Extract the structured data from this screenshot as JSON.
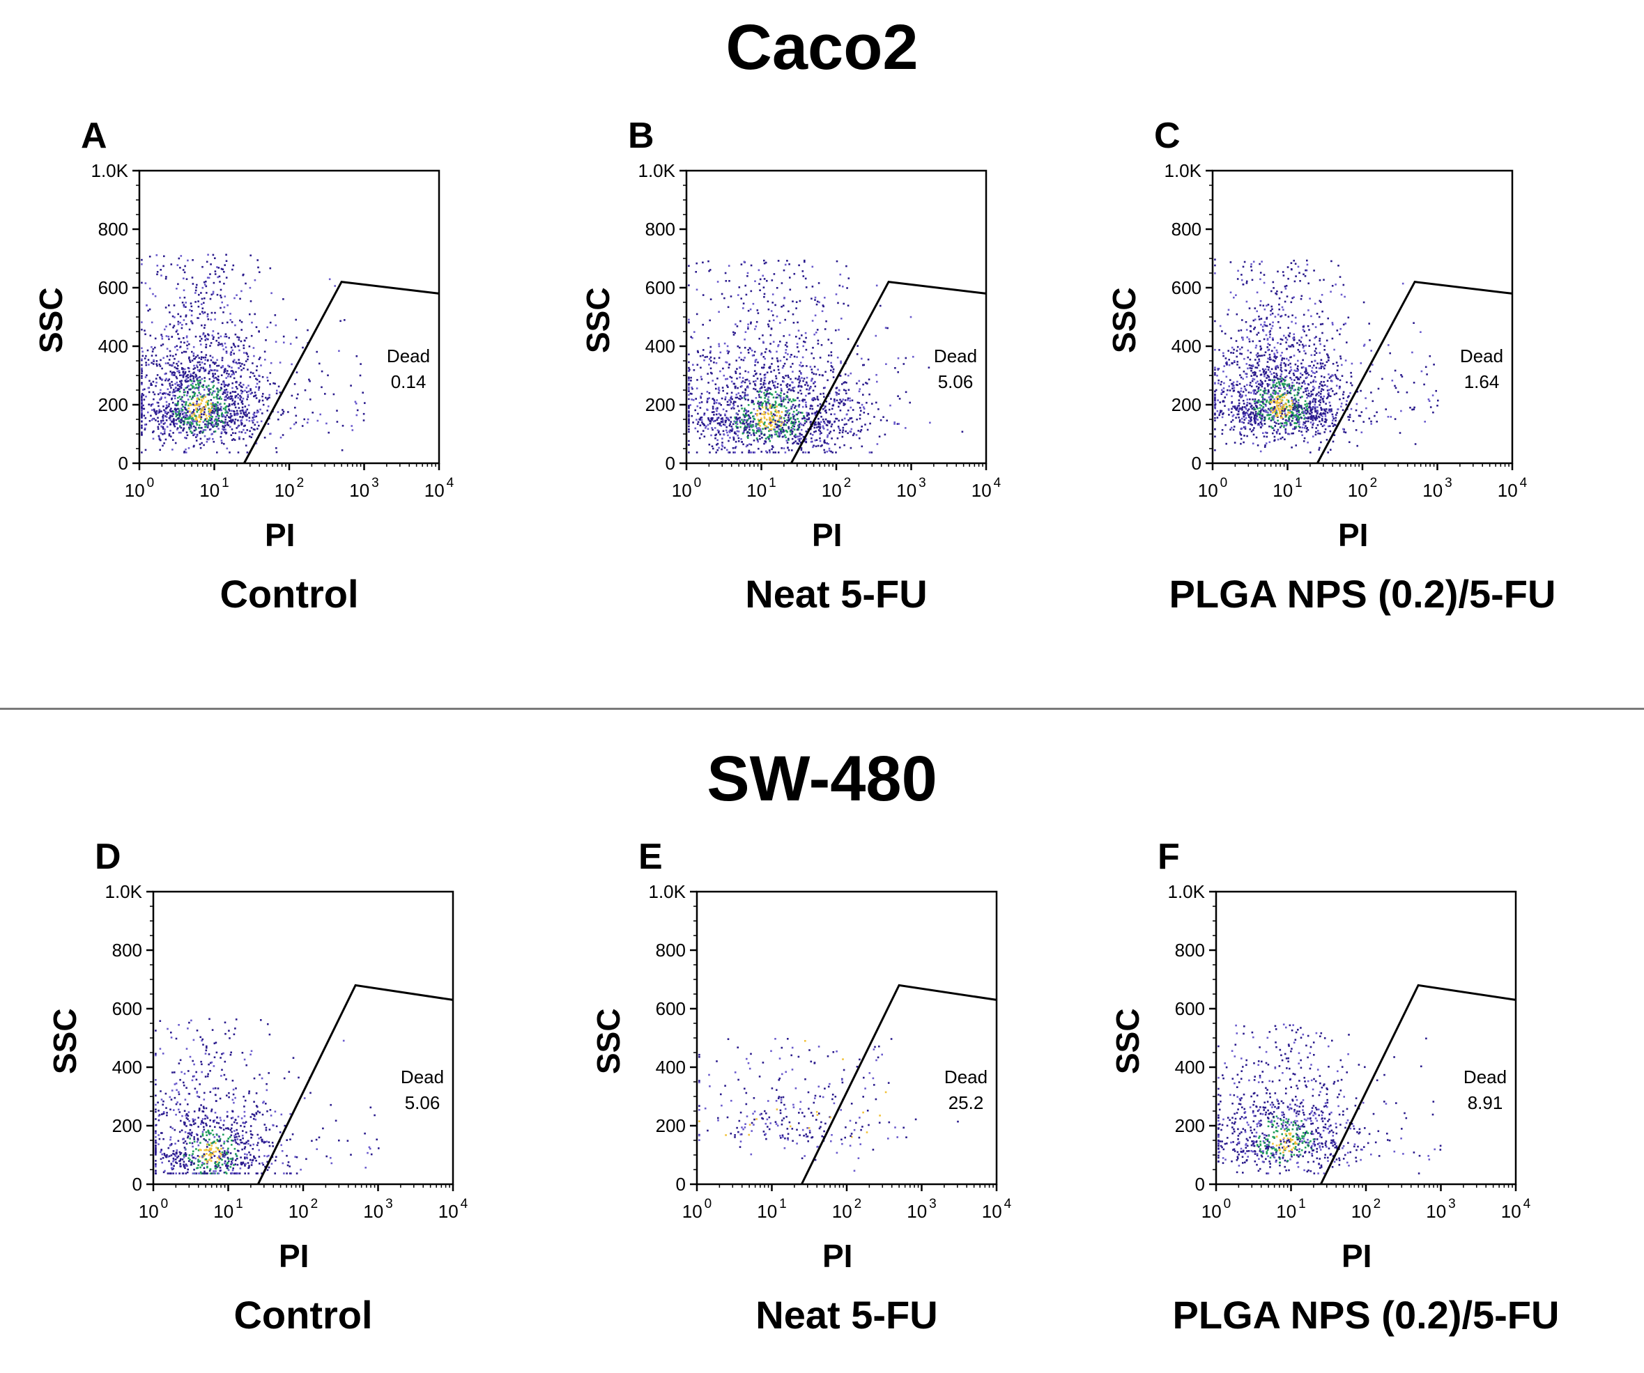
{
  "section_titles": [
    "Caco2",
    "SW-480"
  ],
  "axis": {
    "xlabel": "PI",
    "ylabel": "SSC",
    "x_ticks": [
      {
        "base": "10",
        "exp": "0"
      },
      {
        "base": "10",
        "exp": "1"
      },
      {
        "base": "10",
        "exp": "2"
      },
      {
        "base": "10",
        "exp": "3"
      },
      {
        "base": "10",
        "exp": "4"
      }
    ],
    "y_ticks": [
      "0",
      "200",
      "400",
      "600",
      "800",
      "1.0K"
    ]
  },
  "gate_label": "Dead",
  "colors": {
    "dot_primary": "#2a1a8c",
    "dot_secondary": "#6a5acd",
    "dense_green": "#1f9e5a",
    "dense_yellow": "#f2c23a",
    "divider": "#7a7a7a"
  },
  "chart_data": [
    {
      "type": "scatter",
      "panel": "A",
      "cell_line": "Caco2",
      "condition": "Control",
      "title": "Control",
      "xlabel": "PI",
      "ylabel": "SSC",
      "x_scale": "log",
      "xlim": [
        1,
        10000
      ],
      "ylim": [
        0,
        1000
      ],
      "gate": {
        "label": "Dead",
        "value": "0.14",
        "vertices": [
          [
            25,
            0
          ],
          [
            500,
            620
          ],
          [
            10000,
            580
          ]
        ]
      },
      "population": {
        "x_center_log": 0.8,
        "x_spread_log": 0.45,
        "y_center": 190,
        "y_spread": 130,
        "density": "high",
        "extends_to_y": 720
      }
    },
    {
      "type": "scatter",
      "panel": "B",
      "cell_line": "Caco2",
      "condition": "Neat 5-FU",
      "title": "Neat 5-FU",
      "xlabel": "PI",
      "ylabel": "SSC",
      "x_scale": "log",
      "xlim": [
        1,
        10000
      ],
      "ylim": [
        0,
        1000
      ],
      "gate": {
        "label": "Dead",
        "value": "5.06",
        "vertices": [
          [
            25,
            0
          ],
          [
            500,
            620
          ],
          [
            10000,
            580
          ]
        ]
      },
      "population": {
        "x_center_log": 1.1,
        "x_spread_log": 0.6,
        "y_center": 160,
        "y_spread": 120,
        "density": "high",
        "extends_to_y": 700
      }
    },
    {
      "type": "scatter",
      "panel": "C",
      "cell_line": "Caco2",
      "condition": "PLGA NPS (0.2)/5-FU",
      "title": "PLGA NPS (0.2)/5-FU",
      "xlabel": "PI",
      "ylabel": "SSC",
      "x_scale": "log",
      "xlim": [
        1,
        10000
      ],
      "ylim": [
        0,
        1000
      ],
      "gate": {
        "label": "Dead",
        "value": "1.64",
        "vertices": [
          [
            25,
            0
          ],
          [
            500,
            620
          ],
          [
            10000,
            580
          ]
        ]
      },
      "population": {
        "x_center_log": 0.9,
        "x_spread_log": 0.45,
        "y_center": 200,
        "y_spread": 120,
        "density": "high",
        "extends_to_y": 700
      }
    },
    {
      "type": "scatter",
      "panel": "D",
      "cell_line": "SW-480",
      "condition": "Control",
      "title": "Control",
      "xlabel": "PI",
      "ylabel": "SSC",
      "x_scale": "log",
      "xlim": [
        1,
        10000
      ],
      "ylim": [
        0,
        1000
      ],
      "gate": {
        "label": "Dead",
        "value": "5.06",
        "vertices": [
          [
            25,
            0
          ],
          [
            500,
            680
          ],
          [
            10000,
            630
          ]
        ]
      },
      "population": {
        "x_center_log": 0.75,
        "x_spread_log": 0.45,
        "y_center": 110,
        "y_spread": 110,
        "density": "medium",
        "extends_to_y": 570
      }
    },
    {
      "type": "scatter",
      "panel": "E",
      "cell_line": "SW-480",
      "condition": "Neat 5-FU",
      "title": "Neat 5-FU",
      "xlabel": "PI",
      "ylabel": "SSC",
      "x_scale": "log",
      "xlim": [
        1,
        10000
      ],
      "ylim": [
        0,
        1000
      ],
      "gate": {
        "label": "Dead",
        "value": "25.2",
        "vertices": [
          [
            25,
            0
          ],
          [
            500,
            680
          ],
          [
            10000,
            630
          ]
        ]
      },
      "population": {
        "x_center_log": 1.3,
        "x_spread_log": 0.65,
        "y_center": 210,
        "y_spread": 110,
        "density": "sparse",
        "extends_to_y": 500
      }
    },
    {
      "type": "scatter",
      "panel": "F",
      "cell_line": "SW-480",
      "condition": "PLGA NPS (0.2)/5-FU",
      "title": "PLGA NPS (0.2)/5-FU",
      "xlabel": "PI",
      "ylabel": "SSC",
      "x_scale": "log",
      "xlim": [
        1,
        10000
      ],
      "ylim": [
        0,
        1000
      ],
      "gate": {
        "label": "Dead",
        "value": "8.91",
        "vertices": [
          [
            25,
            0
          ],
          [
            500,
            680
          ],
          [
            10000,
            630
          ]
        ]
      },
      "population": {
        "x_center_log": 0.9,
        "x_spread_log": 0.5,
        "y_center": 150,
        "y_spread": 110,
        "density": "medium",
        "extends_to_y": 550
      }
    }
  ]
}
